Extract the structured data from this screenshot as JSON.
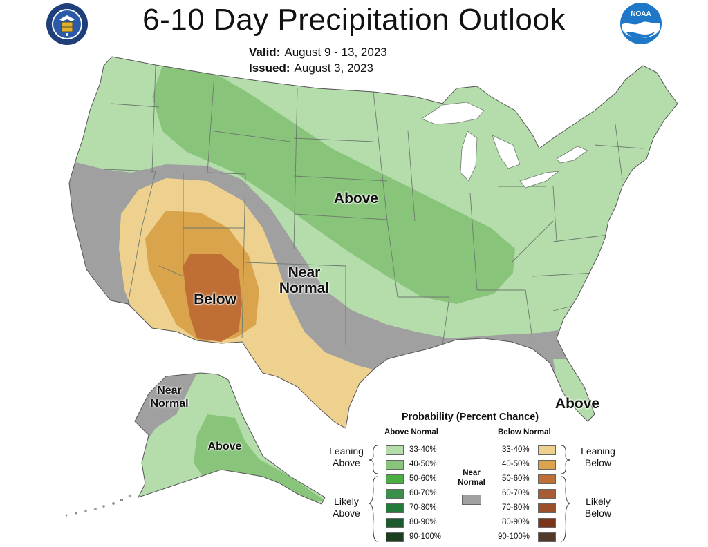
{
  "header": {
    "title": "6-10 Day Precipitation Outlook",
    "valid_label": "Valid:",
    "valid_value": "August 9 - 13, 2023",
    "issued_label": "Issued:",
    "issued_value": "August 3, 2023"
  },
  "logos": {
    "left": "doc-seal-icon",
    "right": "noaa-logo-icon"
  },
  "map_labels": {
    "above_conus": "Above",
    "near_normal_1": "Near",
    "near_normal_2": "Normal",
    "below": "Below",
    "above_florida": "Above",
    "alaska_near_1": "Near",
    "alaska_near_2": "Normal",
    "alaska_above": "Above"
  },
  "colors": {
    "above_33_40": "#b4ddab",
    "above_40_50": "#88c57a",
    "above_50_60": "#4bae44",
    "above_60_70": "#3a8f4a",
    "above_70_80": "#247a3a",
    "above_80_90": "#1d5a2c",
    "above_90_100": "#1b3e1e",
    "below_33_40": "#efd18f",
    "below_40_50": "#d9a44c",
    "below_50_60": "#bf6e35",
    "below_60_70": "#a85c33",
    "below_70_80": "#9b4f2b",
    "below_80_90": "#7a3518",
    "below_90_100": "#55382c",
    "near_normal": "#a0a0a0",
    "water": "#ffffff",
    "state_lines": "#6d7a6d"
  },
  "legend": {
    "title": "Probability (Percent Chance)",
    "above_header": "Above Normal",
    "below_header": "Below Normal",
    "near_normal_1": "Near",
    "near_normal_2": "Normal",
    "leaning_above_1": "Leaning",
    "leaning_above_2": "Above",
    "likely_above_1": "Likely",
    "likely_above_2": "Above",
    "leaning_below_1": "Leaning",
    "leaning_below_2": "Below",
    "likely_below_1": "Likely",
    "likely_below_2": "Below",
    "above_ranges": [
      "33-40%",
      "40-50%",
      "50-60%",
      "60-70%",
      "70-80%",
      "80-90%",
      "90-100%"
    ],
    "below_ranges": [
      "33-40%",
      "40-50%",
      "50-60%",
      "60-70%",
      "70-80%",
      "80-90%",
      "90-100%"
    ]
  }
}
